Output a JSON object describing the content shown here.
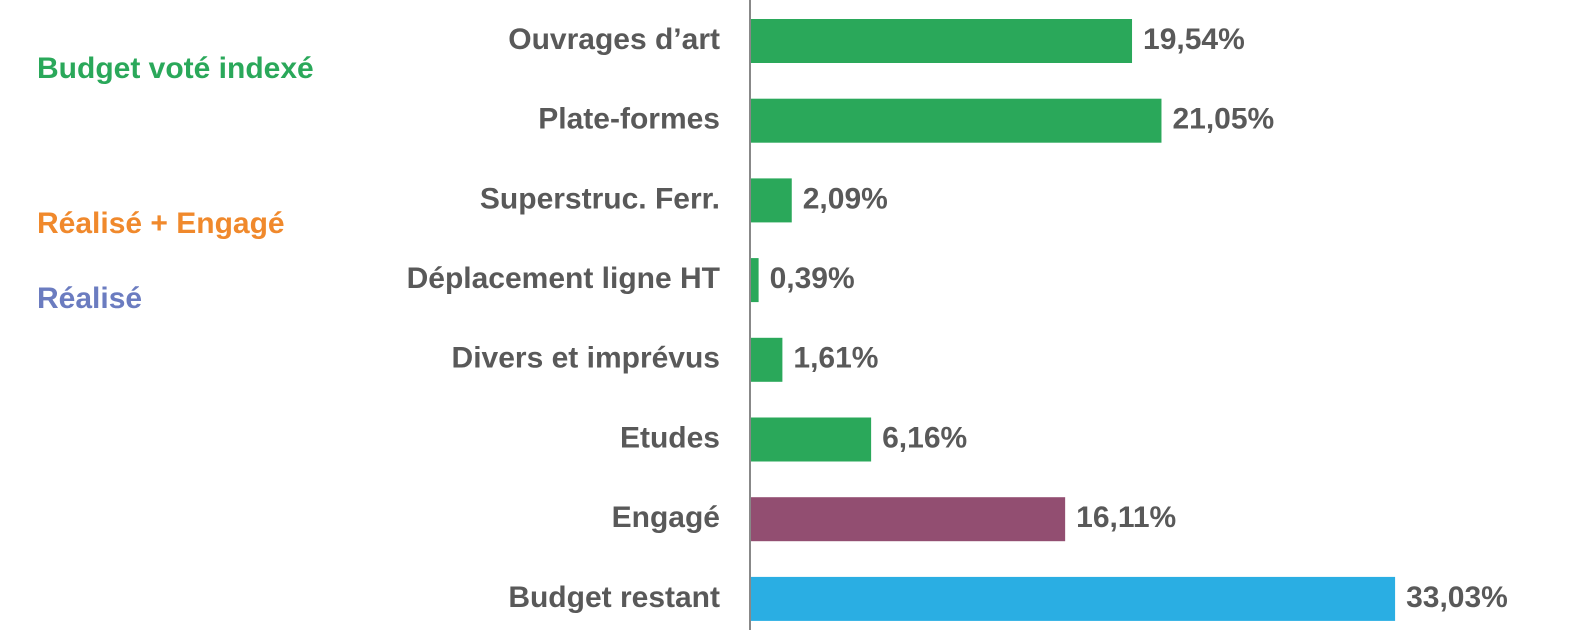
{
  "chart_data": {
    "type": "barh",
    "categories": [
      "Ouvrages d’art",
      "Plate-formes",
      "Superstruc. Ferr.",
      "Déplacement ligne HT",
      "Divers et imprévus",
      "Etudes",
      "Engagé",
      "Budget restant"
    ],
    "values": [
      19.54,
      21.05,
      2.09,
      0.39,
      1.61,
      6.16,
      16.11,
      33.03
    ],
    "value_labels": [
      "19,54%",
      "21,05%",
      "2,09%",
      "0,39%",
      "1,61%",
      "6,16%",
      "16,11%",
      "33,03%"
    ],
    "colors": [
      "#2aa85a",
      "#2aa85a",
      "#2aa85a",
      "#2aa85a",
      "#2aa85a",
      "#2aa85a",
      "#924e71",
      "#2aaee3"
    ],
    "annotations": [
      {
        "text": "Budget voté indexé",
        "color": "#2aa85a"
      },
      {
        "text": "Réalisé + Engagé",
        "color": "#f0892c"
      },
      {
        "text": "Réalisé",
        "color": "#6b7cc0"
      }
    ]
  }
}
